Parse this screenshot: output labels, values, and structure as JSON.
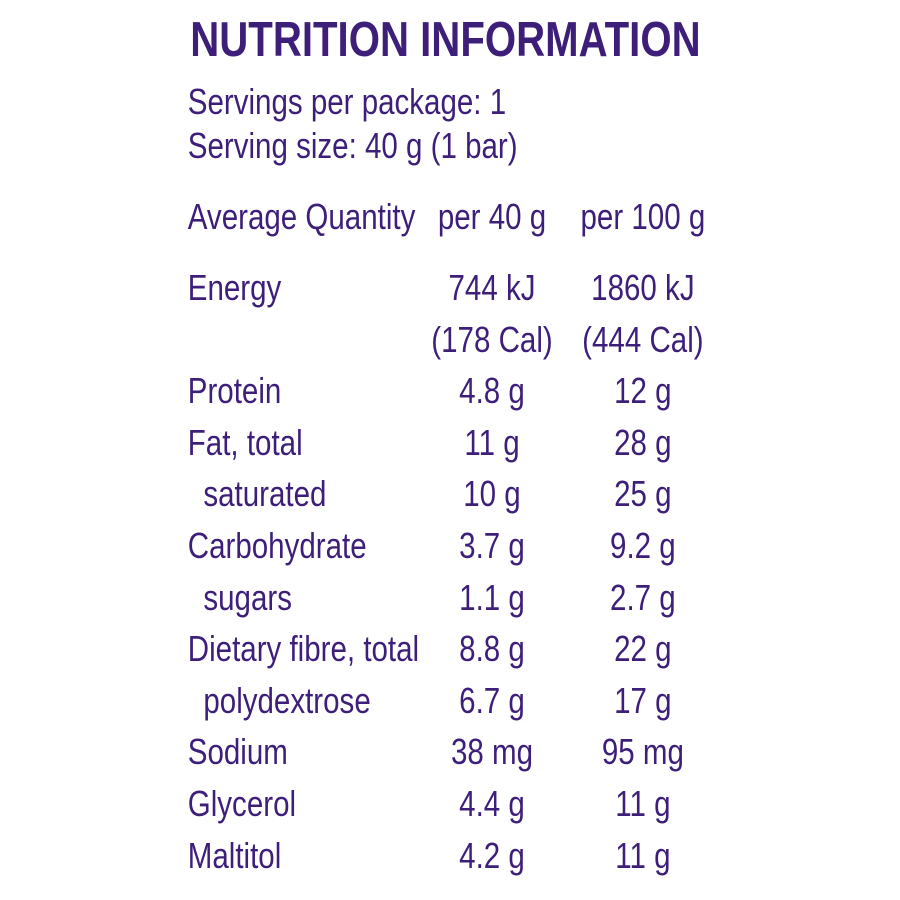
{
  "title": "NUTRITION INFORMATION",
  "servings_per_package": "Servings per package: 1",
  "serving_size": "Serving size: 40 g (1 bar)",
  "header": {
    "label": "Average Quantity",
    "col1": "per 40 g",
    "col2": "per 100 g"
  },
  "rows": [
    {
      "label": "Energy",
      "v1": "744 kJ",
      "v2": "1860 kJ",
      "sub": false
    },
    {
      "label": "",
      "v1": "(178 Cal)",
      "v2": "(444 Cal)",
      "sub": false
    },
    {
      "label": "Protein",
      "v1": "4.8 g",
      "v2": "12 g",
      "sub": false
    },
    {
      "label": "Fat, total",
      "v1": "11 g",
      "v2": "28 g",
      "sub": false
    },
    {
      "label": "saturated",
      "v1": "10 g",
      "v2": "25 g",
      "sub": true
    },
    {
      "label": "Carbohydrate",
      "v1": "3.7 g",
      "v2": "9.2 g",
      "sub": false
    },
    {
      "label": "sugars",
      "v1": "1.1 g",
      "v2": "2.7 g",
      "sub": true
    },
    {
      "label": "Dietary fibre, total",
      "v1": "8.8 g",
      "v2": "22 g",
      "sub": false
    },
    {
      "label": "polydextrose",
      "v1": "6.7 g",
      "v2": "17 g",
      "sub": true
    },
    {
      "label": "Sodium",
      "v1": "38 mg",
      "v2": "95 mg",
      "sub": false
    },
    {
      "label": "Glycerol",
      "v1": "4.4 g",
      "v2": "11 g",
      "sub": false
    },
    {
      "label": "Maltitol",
      "v1": "4.2 g",
      "v2": "11 g",
      "sub": false
    }
  ],
  "colors": {
    "text": "#3d1f7a",
    "background": "#ffffff"
  }
}
